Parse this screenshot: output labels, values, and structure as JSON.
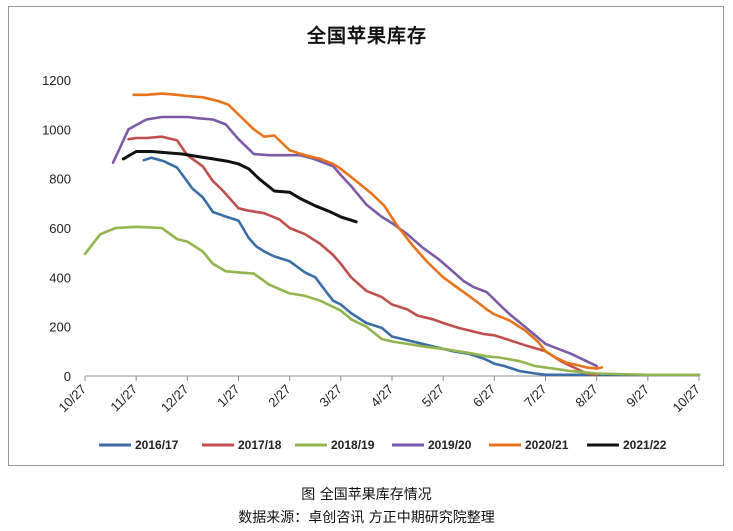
{
  "chart_data": {
    "type": "line",
    "title": "全国苹果库存",
    "xlabel": "",
    "ylabel": "",
    "ylim": [
      0,
      1200
    ],
    "yticks": [
      0,
      200,
      400,
      600,
      800,
      1000,
      1200
    ],
    "categories": [
      "10/27",
      "11/27",
      "12/27",
      "1/27",
      "2/27",
      "3/27",
      "4/27",
      "5/27",
      "6/27",
      "7/27",
      "8/27",
      "9/27",
      "10/27"
    ],
    "grid": false,
    "legend": "bottom",
    "series": [
      {
        "name": "2016/17",
        "color": "#3A6EA5",
        "x": [
          1.15,
          1.3,
          1.55,
          1.8,
          2.1,
          2.3,
          2.5,
          2.7,
          3.0,
          3.2,
          3.35,
          3.5,
          3.7,
          4.0,
          4.3,
          4.5,
          4.7,
          4.85,
          5.0,
          5.2,
          5.5,
          5.8,
          6.0,
          6.2,
          6.5,
          6.8,
          7.0,
          7.2,
          7.5,
          7.8,
          8.0,
          8.2,
          8.5,
          8.8,
          9.0,
          9.3,
          9.5,
          10.0,
          12.0
        ],
        "y": [
          875,
          885,
          870,
          845,
          760,
          725,
          665,
          650,
          630,
          560,
          525,
          505,
          485,
          465,
          420,
          400,
          345,
          305,
          290,
          255,
          215,
          195,
          160,
          150,
          135,
          120,
          110,
          100,
          90,
          70,
          50,
          40,
          20,
          10,
          5,
          5,
          5,
          5,
          5
        ]
      },
      {
        "name": "2017/18",
        "color": "#C0504D",
        "x": [
          0.85,
          1.0,
          1.2,
          1.5,
          1.8,
          2.0,
          2.3,
          2.5,
          2.7,
          3.0,
          3.2,
          3.5,
          3.8,
          4.0,
          4.3,
          4.6,
          4.85,
          5.0,
          5.2,
          5.5,
          5.8,
          6.0,
          6.3,
          6.5,
          6.8,
          7.0,
          7.3,
          7.5,
          7.8,
          8.0,
          8.3,
          8.6,
          9.0,
          9.3,
          9.6,
          9.8,
          10.0
        ],
        "y": [
          960,
          965,
          965,
          970,
          955,
          895,
          850,
          790,
          750,
          680,
          670,
          660,
          635,
          600,
          575,
          535,
          490,
          455,
          400,
          345,
          320,
          290,
          270,
          245,
          230,
          215,
          195,
          185,
          170,
          165,
          145,
          125,
          100,
          60,
          30,
          10,
          5
        ]
      },
      {
        "name": "2018/19",
        "color": "#92B54D",
        "x": [
          0.0,
          0.3,
          0.6,
          1.0,
          1.5,
          1.8,
          2.0,
          2.3,
          2.5,
          2.75,
          3.0,
          3.3,
          3.6,
          4.0,
          4.3,
          4.6,
          4.8,
          5.0,
          5.2,
          5.5,
          5.8,
          6.0,
          6.3,
          6.6,
          7.0,
          7.3,
          7.6,
          7.85,
          8.1,
          8.5,
          8.8,
          9.0,
          9.5,
          10.0,
          11.0,
          12.0
        ],
        "y": [
          495,
          575,
          600,
          605,
          600,
          555,
          545,
          505,
          455,
          425,
          420,
          415,
          370,
          335,
          325,
          305,
          285,
          265,
          230,
          200,
          150,
          140,
          130,
          120,
          110,
          100,
          90,
          80,
          75,
          60,
          40,
          35,
          20,
          10,
          5,
          5
        ]
      },
      {
        "name": "2019/20",
        "color": "#7C5BA6",
        "x": [
          0.55,
          0.85,
          1.2,
          1.5,
          1.8,
          2.0,
          2.2,
          2.5,
          2.75,
          3.0,
          3.3,
          3.6,
          3.8,
          4.0,
          4.2,
          4.4,
          4.6,
          4.85,
          5.0,
          5.2,
          5.5,
          5.8,
          6.0,
          6.3,
          6.6,
          6.9,
          7.1,
          7.4,
          7.6,
          7.85,
          8.1,
          8.3,
          8.6,
          9.0,
          9.5,
          10.0
        ],
        "y": [
          865,
          1000,
          1040,
          1050,
          1050,
          1050,
          1045,
          1040,
          1020,
          960,
          900,
          895,
          895,
          895,
          895,
          885,
          870,
          850,
          815,
          770,
          695,
          645,
          620,
          575,
          520,
          475,
          440,
          385,
          360,
          340,
          290,
          250,
          200,
          130,
          90,
          40
        ]
      },
      {
        "name": "2020/21",
        "color": "#E8731B",
        "x": [
          0.95,
          1.2,
          1.5,
          1.8,
          2.0,
          2.3,
          2.6,
          2.8,
          3.0,
          3.3,
          3.5,
          3.7,
          4.0,
          4.3,
          4.6,
          4.85,
          5.0,
          5.3,
          5.6,
          5.85,
          6.1,
          6.4,
          6.7,
          7.0,
          7.3,
          7.6,
          7.85,
          8.0,
          8.3,
          8.6,
          8.85,
          9.0,
          9.2,
          9.4,
          9.6,
          9.8,
          10.0,
          10.1
        ],
        "y": [
          1140,
          1140,
          1145,
          1140,
          1135,
          1130,
          1115,
          1100,
          1060,
          1000,
          970,
          975,
          915,
          895,
          880,
          860,
          840,
          790,
          740,
          690,
          610,
          530,
          460,
          400,
          355,
          310,
          270,
          250,
          225,
          185,
          140,
          100,
          75,
          55,
          45,
          35,
          30,
          35
        ]
      },
      {
        "name": "2021/22",
        "color": "#111111",
        "x": [
          0.75,
          1.0,
          1.3,
          1.6,
          1.9,
          2.2,
          2.5,
          2.8,
          3.0,
          3.2,
          3.4,
          3.7,
          4.0,
          4.2,
          4.5,
          4.8,
          5.0,
          5.3
        ],
        "y": [
          880,
          910,
          910,
          905,
          900,
          890,
          880,
          870,
          860,
          840,
          800,
          750,
          745,
          720,
          690,
          665,
          645,
          625
        ]
      }
    ]
  },
  "caption": "图  全国苹果库存情况",
  "source": "数据来源：卓创咨讯   方正中期研究院整理"
}
